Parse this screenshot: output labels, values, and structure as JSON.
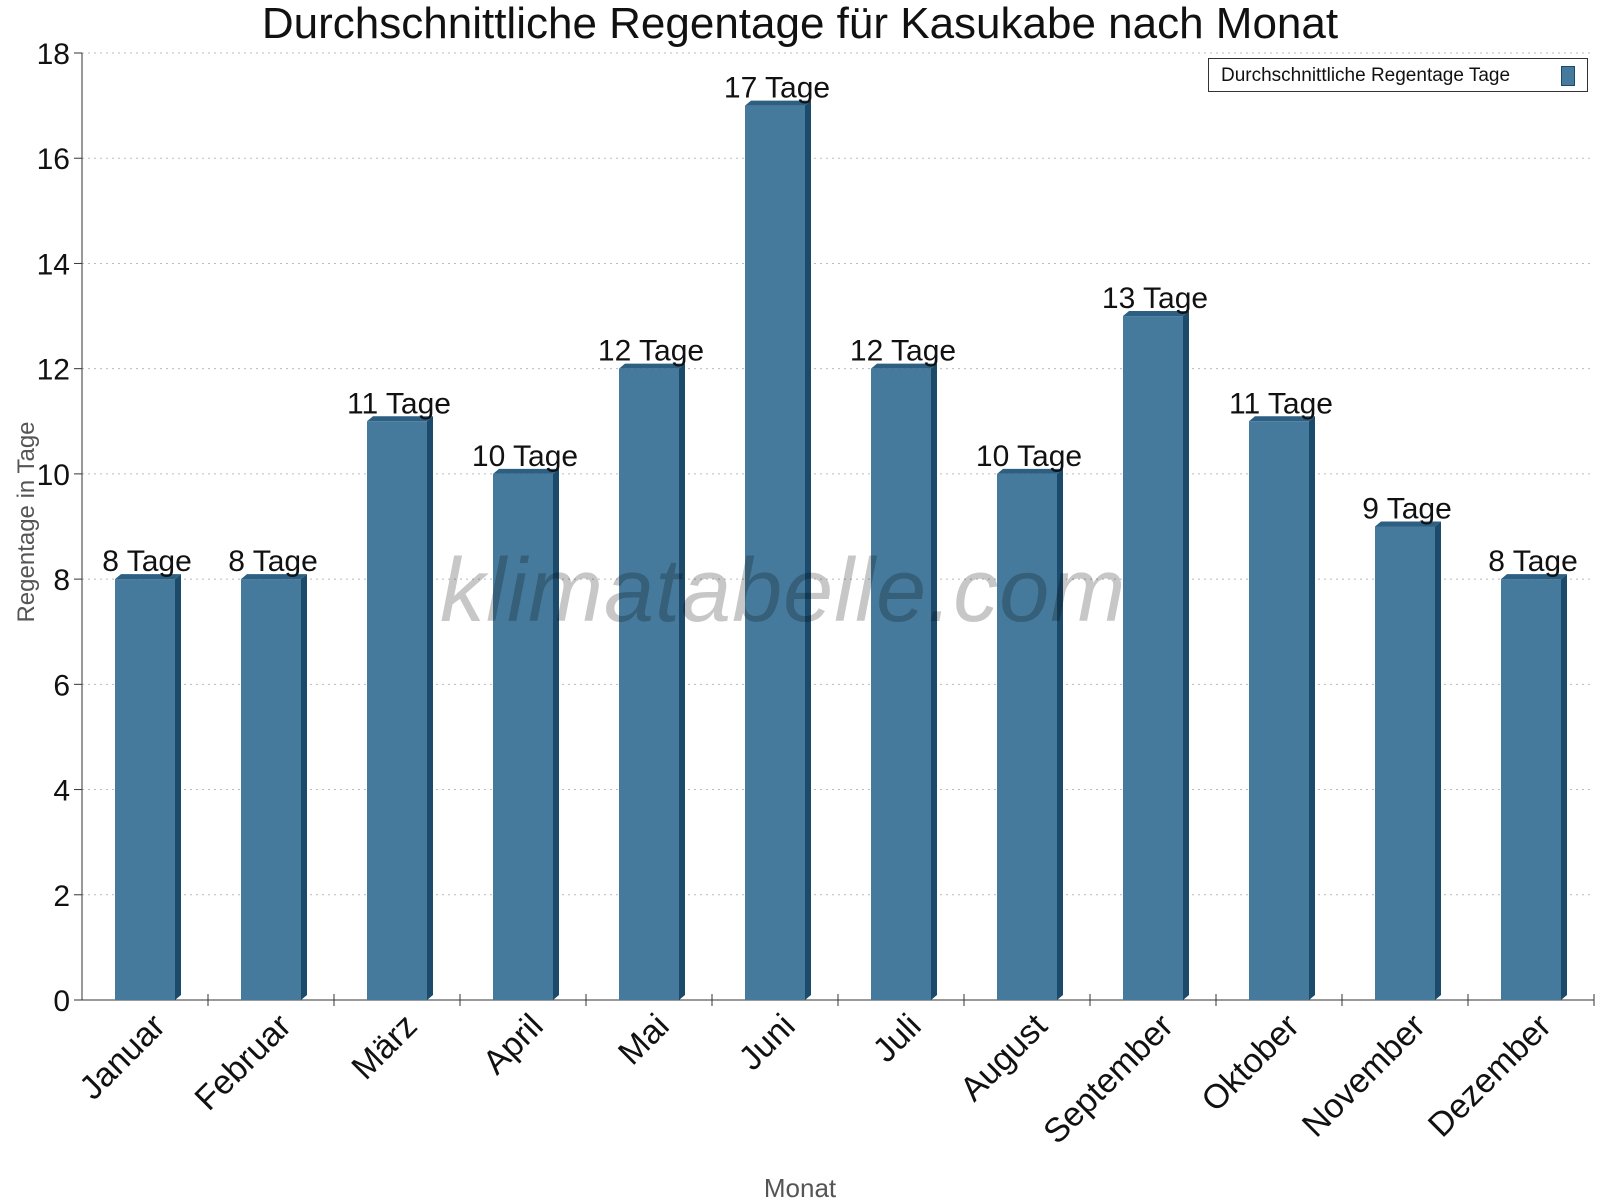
{
  "chart_data": {
    "type": "bar",
    "title": "Durchschnittliche Regentage für Kasukabe nach Monat",
    "xlabel": "Monat",
    "ylabel": "Regentage in Tage",
    "categories": [
      "Januar",
      "Februar",
      "März",
      "April",
      "Mai",
      "Juni",
      "Juli",
      "August",
      "September",
      "Oktober",
      "November",
      "Dezember"
    ],
    "series": [
      {
        "name": "Durchschnittliche Regentage Tage",
        "values": [
          8,
          8,
          11,
          10,
          12,
          17,
          12,
          10,
          13,
          11,
          9,
          8
        ],
        "data_labels": [
          "8 Tage",
          "8 Tage",
          "11 Tage",
          "10 Tage",
          "12 Tage",
          "17 Tage",
          "12 Tage",
          "10 Tage",
          "13 Tage",
          "11 Tage",
          "9 Tage",
          "8 Tage"
        ]
      }
    ],
    "ylim": [
      0,
      18
    ],
    "yticks": [
      0,
      2,
      4,
      6,
      8,
      10,
      12,
      14,
      16,
      18
    ],
    "grid": true,
    "legend": "top-right",
    "colors": {
      "bar": "#467a9c",
      "bar_side": "#1b4a6a",
      "bar_top": "#2d5f82"
    }
  },
  "watermark": "klimatabelle.com"
}
